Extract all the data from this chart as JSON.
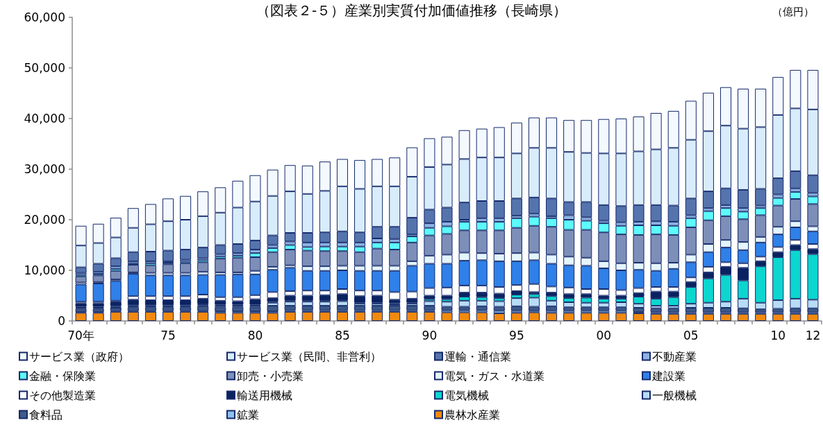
{
  "chart_data": {
    "type": "bar",
    "stacked": true,
    "title": "（図表２-５）産業別実質付加価値推移（長崎県）",
    "ylabel": "（億円）",
    "categories": [
      "70年",
      null,
      null,
      null,
      null,
      "75",
      null,
      null,
      null,
      null,
      "80",
      null,
      null,
      null,
      null,
      "85",
      null,
      null,
      null,
      null,
      "90",
      null,
      null,
      null,
      null,
      "95",
      null,
      null,
      null,
      null,
      "00",
      null,
      null,
      null,
      null,
      "05",
      null,
      null,
      null,
      null,
      "10",
      null,
      "12"
    ],
    "ylim": [
      0,
      60000
    ],
    "yticks": [
      0,
      {
        "value": 10000,
        "label": "10,000"
      },
      {
        "value": 20000,
        "label": "20,000"
      },
      {
        "value": 30000,
        "label": "30,000"
      },
      {
        "value": 40000,
        "label": "40,000"
      },
      {
        "value": 50000,
        "label": "50,000"
      },
      {
        "value": 60000,
        "label": "60,000"
      }
    ],
    "legend": "bottom",
    "series": [
      {
        "name": "農林水産業",
        "color": "#f28a10",
        "values": [
          1600,
          1600,
          1800,
          1800,
          1800,
          1800,
          1800,
          1800,
          1600,
          1600,
          1600,
          1600,
          1800,
          1800,
          1800,
          1800,
          1800,
          1800,
          1800,
          1800,
          1800,
          1700,
          1700,
          1700,
          1500,
          1600,
          1700,
          1600,
          1600,
          1600,
          1600,
          1600,
          1500,
          1400,
          1400,
          1400,
          1400,
          1400,
          1400,
          1400,
          1400,
          1400,
          1400
        ]
      },
      {
        "name": "鉱業",
        "color": "#8dc0ec",
        "values": [
          200,
          200,
          200,
          200,
          200,
          200,
          200,
          200,
          300,
          300,
          300,
          300,
          300,
          300,
          300,
          300,
          300,
          300,
          300,
          300,
          300,
          400,
          400,
          400,
          500,
          400,
          300,
          400,
          400,
          400,
          400,
          400,
          300,
          300,
          300,
          300,
          300,
          300,
          300,
          300,
          300,
          300,
          300
        ]
      },
      {
        "name": "食料品",
        "color": "#3c5a88",
        "values": [
          600,
          600,
          600,
          700,
          700,
          700,
          700,
          900,
          800,
          800,
          800,
          1100,
          900,
          900,
          900,
          900,
          900,
          900,
          900,
          900,
          900,
          700,
          700,
          800,
          800,
          900,
          800,
          900,
          700,
          700,
          700,
          700,
          800,
          800,
          800,
          900,
          900,
          900,
          800,
          600,
          700,
          800,
          800
        ]
      },
      {
        "name": "一般機械",
        "color": "#b8dcf5",
        "values": [
          200,
          200,
          200,
          200,
          200,
          200,
          200,
          200,
          300,
          300,
          300,
          600,
          800,
          800,
          800,
          900,
          400,
          400,
          300,
          400,
          900,
          1000,
          1200,
          1100,
          1100,
          1600,
          1800,
          1100,
          1000,
          900,
          900,
          1000,
          800,
          500,
          500,
          800,
          1000,
          1200,
          1900,
          1300,
          1700,
          1900,
          1700
        ]
      },
      {
        "name": "電気機械",
        "color": "#0cd6cf",
        "values": [
          200,
          200,
          200,
          200,
          200,
          200,
          200,
          200,
          200,
          200,
          200,
          200,
          200,
          200,
          200,
          200,
          200,
          200,
          200,
          200,
          400,
          500,
          800,
          700,
          600,
          700,
          700,
          900,
          800,
          1000,
          800,
          700,
          1400,
          1400,
          1700,
          3300,
          4800,
          5300,
          3600,
          7200,
          8500,
          9600,
          9000
        ]
      },
      {
        "name": "輸送用機械",
        "color": "#0a2260",
        "values": [
          700,
          700,
          700,
          1100,
          1000,
          1000,
          1000,
          1100,
          800,
          700,
          1100,
          700,
          1000,
          1000,
          1100,
          1200,
          1300,
          1400,
          700,
          800,
          700,
          700,
          800,
          900,
          900,
          700,
          400,
          700,
          800,
          700,
          600,
          600,
          700,
          1400,
          1100,
          1000,
          1200,
          1600,
          2500,
          1000,
          1000,
          1000,
          1000
        ]
      },
      {
        "name": "その他製造業",
        "color": "#ffffff",
        "values": [
          300,
          300,
          300,
          700,
          800,
          800,
          800,
          800,
          700,
          800,
          800,
          1200,
          900,
          1000,
          900,
          1000,
          1100,
          1000,
          1500,
          1400,
          1500,
          1600,
          1400,
          1400,
          1300,
          1200,
          1600,
          1200,
          1300,
          1000,
          1300,
          1100,
          1000,
          900,
          900,
          900,
          1100,
          900,
          900,
          900,
          1000,
          1000,
          1000
        ]
      },
      {
        "name": "建設業",
        "color": "#2f80e8",
        "values": [
          3400,
          3600,
          3900,
          4400,
          4100,
          4100,
          4100,
          3900,
          4400,
          4500,
          4100,
          4400,
          4600,
          3900,
          3900,
          3700,
          3900,
          3900,
          4200,
          5100,
          4800,
          4700,
          4900,
          5000,
          5100,
          4700,
          4700,
          4500,
          4400,
          4600,
          4100,
          3900,
          3600,
          3200,
          3600,
          3000,
          2900,
          2900,
          2600,
          2800,
          2500,
          2500,
          2500
        ]
      },
      {
        "name": "電気・ガス・水道業",
        "color": "#e4f5fd",
        "values": [
          400,
          300,
          300,
          300,
          500,
          500,
          500,
          600,
          500,
          400,
          700,
          600,
          500,
          900,
          900,
          900,
          1000,
          1000,
          1000,
          900,
          1600,
          1800,
          1600,
          1400,
          1500,
          1600,
          1500,
          1800,
          1700,
          1600,
          1400,
          1400,
          1400,
          1500,
          1200,
          1500,
          1600,
          1500,
          1600,
          1100,
          1500,
          1200,
          1000
        ]
      },
      {
        "name": "卸売・小売業",
        "color": "#7d8fb8",
        "values": [
          1200,
          1300,
          1700,
          1500,
          1500,
          1700,
          1900,
          1900,
          2700,
          2900,
          2700,
          2900,
          3100,
          3100,
          3000,
          2900,
          2700,
          3400,
          3200,
          3700,
          4000,
          4100,
          4400,
          4500,
          4600,
          5000,
          5300,
          5500,
          5300,
          5500,
          5700,
          5700,
          5500,
          5700,
          5500,
          5400,
          4700,
          4700,
          4500,
          4300,
          4200,
          4400,
          4400
        ]
      },
      {
        "name": "金融・保険業",
        "color": "#5cfafa",
        "values": [
          300,
          300,
          400,
          300,
          400,
          300,
          300,
          400,
          400,
          400,
          800,
          800,
          900,
          700,
          900,
          900,
          1100,
          1200,
          1400,
          1200,
          1500,
          1500,
          1700,
          1700,
          1700,
          1900,
          1800,
          1700,
          2000,
          1800,
          1800,
          1700,
          1900,
          1800,
          1800,
          1800,
          1800,
          1600,
          1500,
          1400,
          1500,
          1400,
          1500
        ]
      },
      {
        "name": "不動産業",
        "color": "#8db3e2",
        "values": [
          400,
          400,
          500,
          400,
          400,
          300,
          400,
          400,
          500,
          500,
          700,
          600,
          700,
          900,
          800,
          800,
          800,
          800,
          700,
          400,
          900,
          900,
          400,
          700,
          700,
          500,
          600,
          400,
          900,
          700,
          500,
          700,
          700,
          800,
          800,
          600,
          600,
          600,
          700,
          500,
          700,
          700,
          700
        ]
      },
      {
        "name": "運輸・通信業",
        "color": "#5574ad",
        "values": [
          1100,
          1600,
          1600,
          1800,
          1900,
          2100,
          2000,
          2100,
          1800,
          1800,
          1800,
          1900,
          1700,
          1900,
          2000,
          2200,
          2000,
          2300,
          2400,
          3300,
          2700,
          2800,
          3400,
          3400,
          3400,
          3400,
          3200,
          3500,
          2600,
          3000,
          3100,
          3200,
          3300,
          3200,
          3200,
          3300,
          3300,
          3300,
          3600,
          3300,
          3200,
          3400,
          3500
        ]
      },
      {
        "name": "サービス業（民間、非営利）",
        "color": "#d8ecfb",
        "values": [
          4300,
          4100,
          4100,
          4800,
          5400,
          5800,
          5900,
          6200,
          6400,
          7200,
          7700,
          7800,
          8200,
          7700,
          8200,
          8900,
          8600,
          8000,
          8000,
          8100,
          8400,
          8500,
          8600,
          8600,
          8600,
          8900,
          9800,
          10000,
          9900,
          9700,
          10200,
          10400,
          10600,
          11000,
          11400,
          11600,
          11900,
          12400,
          12100,
          12200,
          12500,
          12400,
          13000
        ]
      },
      {
        "name": "サービス業（政府）",
        "color": "#f3f9fe",
        "values": [
          3900,
          3800,
          3900,
          3900,
          4000,
          4500,
          4700,
          4900,
          5000,
          5300,
          5200,
          5200,
          5200,
          5600,
          5800,
          5400,
          5700,
          5400,
          5700,
          5800,
          5700,
          5500,
          5700,
          5700,
          6000,
          6100,
          6000,
          6000,
          6300,
          6500,
          6800,
          6900,
          6900,
          7200,
          7300,
          7700,
          7600,
          7600,
          7900,
          7600,
          7500,
          7600,
          7800
        ]
      }
    ]
  }
}
